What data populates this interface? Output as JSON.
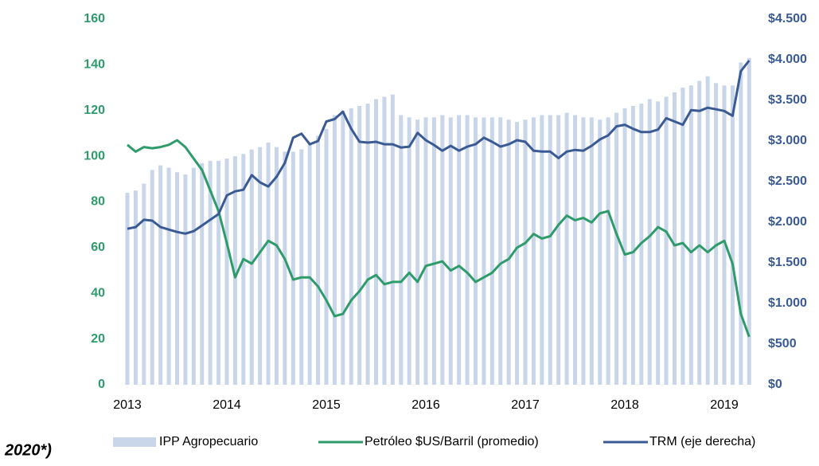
{
  "chart_data": {
    "type": "combo",
    "note": "2020*)",
    "categories": [
      "2013",
      null,
      null,
      null,
      null,
      null,
      null,
      null,
      null,
      null,
      null,
      null,
      "2014",
      null,
      null,
      null,
      null,
      null,
      null,
      null,
      null,
      null,
      null,
      null,
      "2015",
      null,
      null,
      null,
      null,
      null,
      null,
      null,
      null,
      null,
      null,
      null,
      "2016",
      null,
      null,
      null,
      null,
      null,
      null,
      null,
      null,
      null,
      null,
      null,
      "2017",
      null,
      null,
      null,
      null,
      null,
      null,
      null,
      null,
      null,
      null,
      null,
      "2018",
      null,
      null,
      null,
      null,
      null,
      null,
      null,
      null,
      null,
      null,
      null,
      "2019",
      null,
      null,
      null
    ],
    "series": [
      {
        "name": "IPP Agropecuario",
        "type": "bar",
        "color": "#c9d6ea",
        "values": [
          84,
          85,
          88,
          94,
          96,
          95,
          93,
          92,
          95,
          97,
          98,
          98,
          99,
          100,
          101,
          103,
          104,
          106,
          104,
          102,
          102,
          103,
          106,
          109,
          112,
          118,
          120,
          121,
          122,
          123,
          125,
          126,
          127,
          118,
          117,
          116,
          117,
          117,
          118,
          117,
          118,
          118,
          117,
          117,
          117,
          117,
          116,
          115,
          116,
          117,
          118,
          118,
          118,
          119,
          118,
          117,
          117,
          116,
          117,
          119,
          121,
          122,
          123,
          125,
          124,
          126,
          128,
          130,
          131,
          133,
          135,
          132,
          131,
          131,
          141,
          143
        ]
      },
      {
        "name": "Petróleo $US/Barril (promedio)",
        "type": "line",
        "color": "#2e9b6a",
        "values": [
          105,
          102,
          104,
          103.5,
          104,
          105,
          107,
          104,
          99,
          94,
          85,
          76,
          62,
          47,
          55,
          53,
          58,
          63,
          61,
          55,
          46,
          47,
          47,
          43,
          37,
          30,
          31,
          37,
          41,
          46,
          48,
          44,
          45,
          45,
          49,
          45,
          52,
          53,
          54,
          50,
          52,
          49,
          45,
          47,
          49,
          53,
          55,
          60,
          62,
          66,
          64,
          65,
          70,
          74,
          72,
          73,
          71,
          75,
          76,
          66,
          57,
          58,
          62,
          65,
          69,
          67,
          61,
          62,
          58,
          61,
          58,
          61,
          63,
          53,
          31,
          21
        ]
      },
      {
        "name": "TRM (eje derecha)",
        "type": "line",
        "color": "#3a5a94",
        "axis": "y2",
        "values": [
          1920,
          1940,
          2030,
          2020,
          1940,
          1910,
          1880,
          1860,
          1890,
          1960,
          2030,
          2100,
          2330,
          2380,
          2400,
          2580,
          2490,
          2440,
          2560,
          2730,
          3040,
          3090,
          2960,
          3000,
          3240,
          3270,
          3360,
          3150,
          2990,
          2980,
          2990,
          2960,
          2960,
          2920,
          2930,
          3100,
          3010,
          2950,
          2880,
          2940,
          2880,
          2930,
          2960,
          3040,
          2990,
          2930,
          2960,
          3010,
          2990,
          2880,
          2870,
          2870,
          2790,
          2870,
          2890,
          2880,
          2940,
          3020,
          3070,
          3180,
          3200,
          3150,
          3110,
          3110,
          3140,
          3280,
          3240,
          3200,
          3380,
          3370,
          3410,
          3390,
          3370,
          3310,
          3860,
          3990
        ]
      }
    ],
    "ylim": [
      0,
      160
    ],
    "yticks": [
      0,
      20,
      40,
      60,
      80,
      100,
      120,
      140,
      160
    ],
    "y2lim": [
      0,
      4500
    ],
    "y2ticks": [
      {
        "value": 0,
        "label": "$0"
      },
      {
        "value": 500,
        "label": "$500"
      },
      {
        "value": 1000,
        "label": "$1.000"
      },
      {
        "value": 1500,
        "label": "$1.500"
      },
      {
        "value": 2000,
        "label": "$2.000"
      },
      {
        "value": 2500,
        "label": "$2.500"
      },
      {
        "value": 3000,
        "label": "$3.000"
      },
      {
        "value": 3500,
        "label": "$3.500"
      },
      {
        "value": 4000,
        "label": "$4.000"
      },
      {
        "value": 4500,
        "label": "$4.500"
      }
    ],
    "legend": "bottom"
  }
}
